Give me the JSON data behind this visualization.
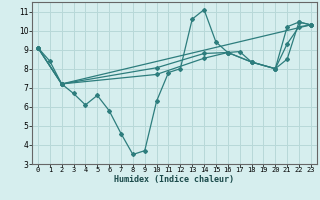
{
  "xlabel": "Humidex (Indice chaleur)",
  "xlim": [
    -0.5,
    23.5
  ],
  "ylim": [
    3,
    11.5
  ],
  "yticks": [
    3,
    4,
    5,
    6,
    7,
    8,
    9,
    10,
    11
  ],
  "xticks": [
    0,
    1,
    2,
    3,
    4,
    5,
    6,
    7,
    8,
    9,
    10,
    11,
    12,
    13,
    14,
    15,
    16,
    17,
    18,
    19,
    20,
    21,
    22,
    23
  ],
  "bg_color": "#d6eeee",
  "grid_color": "#b8d8d8",
  "line_color": "#2d7d7d",
  "series": [
    {
      "x": [
        0,
        1,
        2,
        3,
        4,
        5,
        6,
        7,
        8,
        9,
        10,
        11,
        12,
        13,
        14,
        15,
        16,
        17,
        18,
        20,
        21,
        22,
        23
      ],
      "y": [
        9.1,
        8.4,
        7.2,
        6.7,
        6.1,
        6.6,
        5.8,
        4.6,
        3.5,
        3.7,
        6.3,
        7.8,
        8.0,
        10.6,
        11.1,
        9.4,
        8.85,
        8.9,
        8.35,
        8.0,
        9.3,
        10.2,
        10.3
      ]
    },
    {
      "x": [
        0,
        2,
        10,
        14,
        16,
        18,
        20,
        21,
        22,
        23
      ],
      "y": [
        9.1,
        7.2,
        8.05,
        8.8,
        8.85,
        8.35,
        8.0,
        8.5,
        10.45,
        10.3
      ]
    },
    {
      "x": [
        0,
        2,
        10,
        14,
        16,
        18,
        20,
        21,
        22,
        23
      ],
      "y": [
        9.1,
        7.2,
        7.7,
        8.55,
        8.85,
        8.35,
        8.0,
        10.2,
        10.45,
        10.3
      ]
    },
    {
      "x": [
        0,
        2,
        23
      ],
      "y": [
        9.1,
        7.2,
        10.3
      ]
    }
  ]
}
